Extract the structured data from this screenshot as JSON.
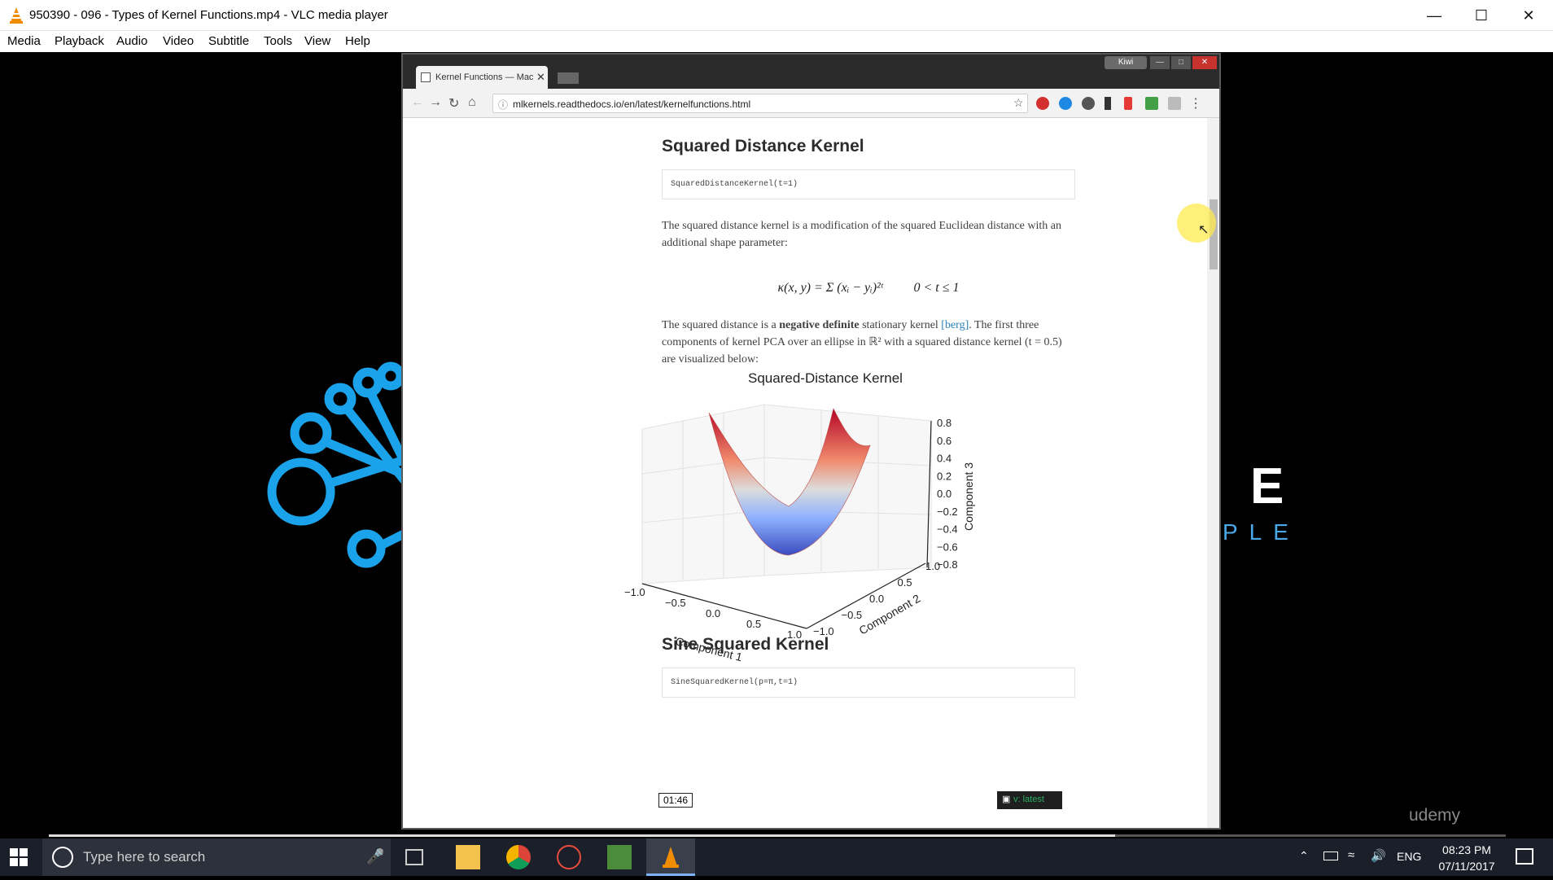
{
  "window": {
    "title": "950390 - 096 - Types of Kernel Functions.mp4 - VLC media player"
  },
  "menu": [
    "Media",
    "Playback",
    "Audio",
    "Video",
    "Subtitle",
    "Tools",
    "View",
    "Help"
  ],
  "browser": {
    "tab_title": "Kernel Functions — Mac",
    "kiwi_label": "Kiwi",
    "url": "mlkernels.readthedocs.io/en/latest/kernelfunctions.html"
  },
  "page": {
    "heading1": "Squared Distance Kernel",
    "code1": "SquaredDistanceKernel(t=1)",
    "para1": "The squared distance kernel is a modification of the squared Euclidean distance with an additional shape parameter:",
    "formula_left": "κ(x, y) = Σ (xᵢ − yᵢ)²ᵗ",
    "formula_right": "0 < t ≤ 1",
    "para2_start": "The squared distance is a ",
    "para2_bold": "negative definite",
    "para2_mid": " stationary kernel ",
    "para2_link": "[berg]",
    "para2_end": ". The first three components of kernel PCA over an ellipse in ℝ² with a squared distance kernel (t = 0.5) are visualized below:",
    "heading2": "Sine Squared Kernel",
    "code2": "SineSquaredKernel(p=π,t=1)",
    "version_badge": "v: latest",
    "time_popup": "01:46"
  },
  "chart_data": {
    "type": "surface3d",
    "title": "Squared-Distance Kernel",
    "xlabel": "Component 1",
    "ylabel": "Component 2",
    "zlabel": "Component 3",
    "x_ticks": [
      "−1.0",
      "−0.5",
      "0.0",
      "0.5",
      "1.0"
    ],
    "y_ticks": [
      "−1.0",
      "−0.5",
      "0.0",
      "0.5",
      "1.0"
    ],
    "z_ticks": [
      "0.8",
      "0.6",
      "0.4",
      "0.2",
      "0.0",
      "−0.2",
      "−0.4",
      "−0.6",
      "−0.8"
    ],
    "zlim": [
      -0.8,
      0.8
    ],
    "colormap": "coolwarm"
  },
  "background": {
    "logo_letter": "E",
    "logo_text": "PLE",
    "watermark": "udemy"
  },
  "taskbar": {
    "search_placeholder": "Type here to search",
    "lang": "ENG",
    "time": "08:23 PM",
    "date": "07/11/2017"
  },
  "colors": {
    "accent_vlc": "#f08c00",
    "link": "#2980b9",
    "taskbar": "#1b1f2a"
  }
}
